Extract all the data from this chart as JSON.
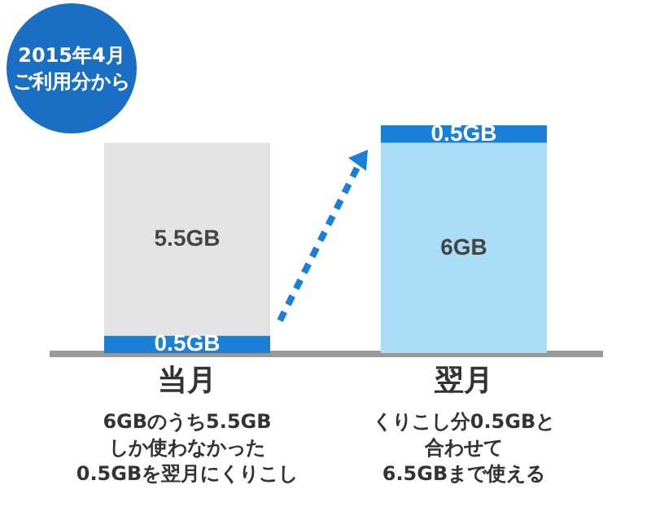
{
  "chart_data": {
    "type": "bar",
    "stacked": true,
    "categories": [
      "当月",
      "翌月"
    ],
    "series": [
      {
        "colors": [
          "#1a7fd6",
          "#a9dcf5"
        ],
        "values": [
          0.5,
          6
        ],
        "value_labels": [
          "0.5GB",
          "6GB"
        ]
      },
      {
        "colors": [
          "#e3e3e3",
          "#1a7fd6"
        ],
        "values": [
          5.5,
          0.5
        ],
        "value_labels": [
          "5.5GB",
          "0.5GB"
        ]
      }
    ],
    "annotations": [
      "2015年4月ご利用分から",
      "6GBのうち5.5GBしか使わなかった0.5GBを翌月にくりこし",
      "くりこし分0.5GBと合わせて6.5GBまで使える"
    ],
    "grid": false
  }
}
